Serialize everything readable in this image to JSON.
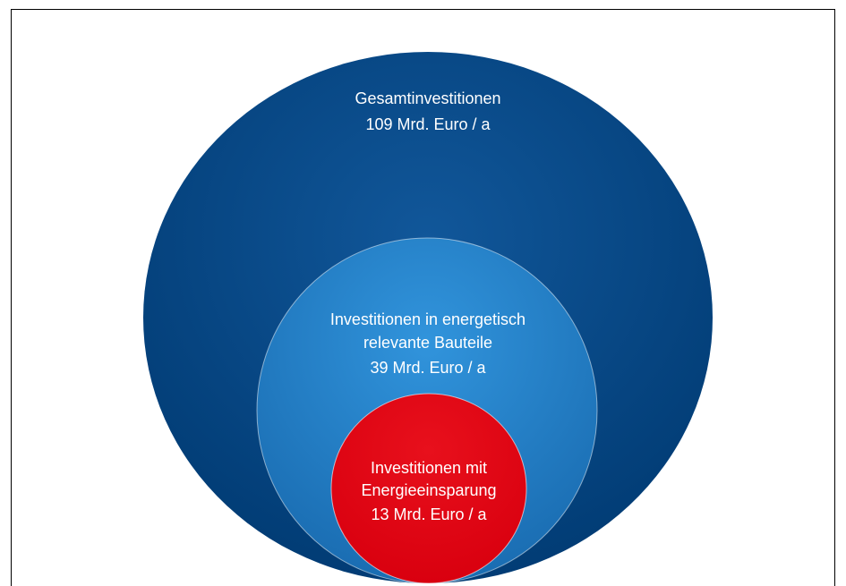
{
  "nodes": [
    {
      "lines": [
        "Gesamtinvestitionen",
        "109 Mrd. Euro / a"
      ]
    },
    {
      "lines": [
        "Investitionen in energetisch",
        "relevante Bauteile",
        "39 Mrd. Euro / a"
      ]
    },
    {
      "lines": [
        "Investitionen mit",
        "Energieeinsparung",
        "13 Mrd. Euro / a"
      ]
    }
  ]
}
